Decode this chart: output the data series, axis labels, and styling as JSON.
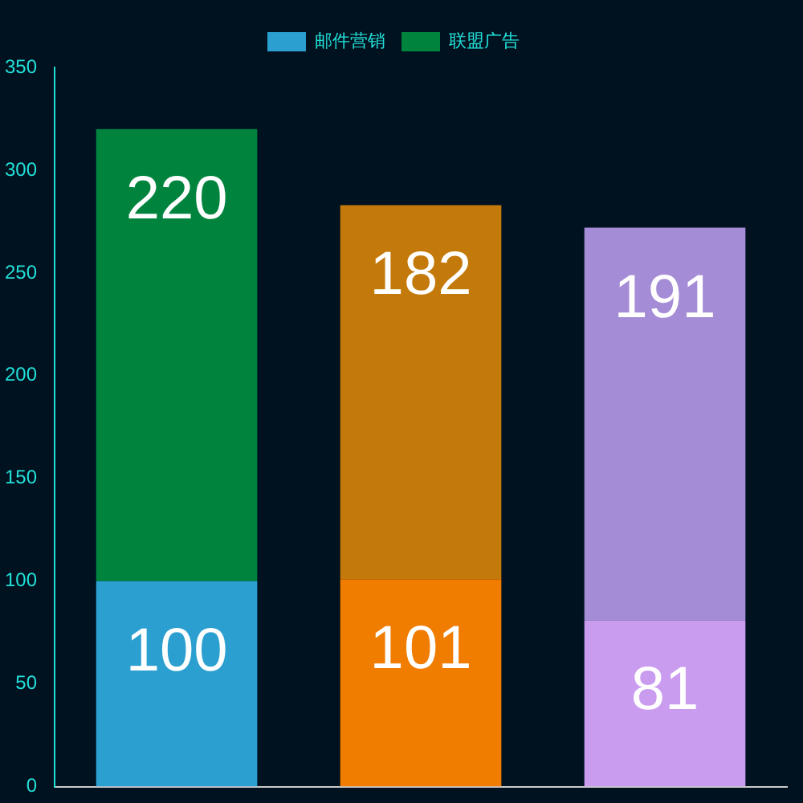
{
  "chart_data": {
    "type": "bar",
    "stacked": true,
    "categories": [
      null,
      null,
      null
    ],
    "series": [
      {
        "name": "邮件营销",
        "colors": [
          "#2a9fd0",
          "#f07c00",
          "#c99cf0"
        ],
        "values": [
          100,
          101,
          81
        ]
      },
      {
        "name": "联盟广告",
        "colors": [
          "#00843d",
          "#c47a0a",
          "#a58cd6"
        ],
        "values": [
          220,
          182,
          191
        ]
      }
    ],
    "ylim": [
      0,
      350
    ],
    "yticks": [
      0,
      50,
      100,
      150,
      200,
      250,
      300,
      350
    ],
    "grid": false,
    "legend": "top",
    "tick_labels": "y",
    "data_labels": true
  }
}
